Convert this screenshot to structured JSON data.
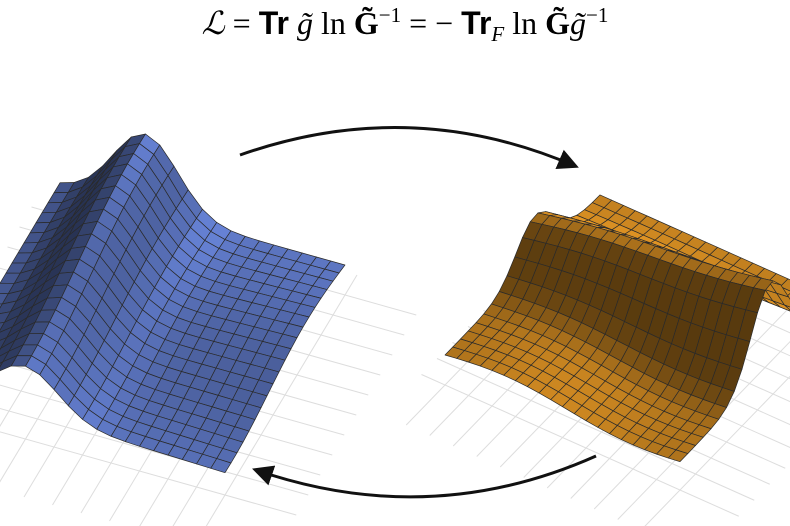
{
  "equation": [
    "ℒ",
    "=",
    "Tr",
    "g̃",
    "ln",
    "G̃",
    "−1",
    "=",
    "−",
    "Tr",
    "F",
    "ln",
    "G̃",
    "g̃",
    "−1"
  ]
}
